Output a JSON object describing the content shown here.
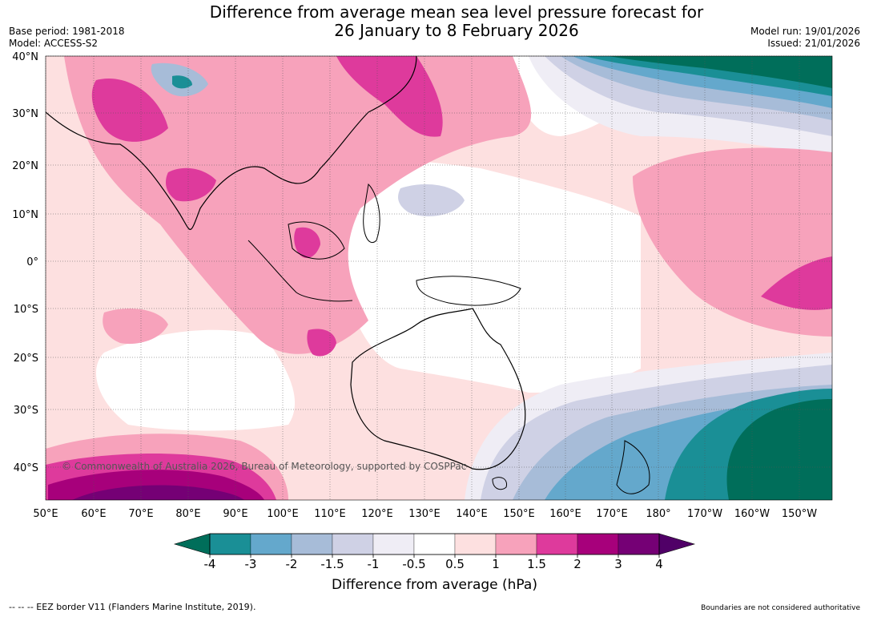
{
  "header": {
    "title_line1": "Difference from average mean sea level pressure forecast for",
    "title_line2": "26 January to 8 February 2026",
    "base_period": "Base period: 1981-2018",
    "model": "Model: ACCESS-S2",
    "model_run": "Model run: 19/01/2026",
    "issued": "Issued: 21/01/2026"
  },
  "map": {
    "lat_labels": [
      "40°N",
      "30°N",
      "20°N",
      "10°N",
      "0°",
      "10°S",
      "20°S",
      "30°S",
      "40°S"
    ],
    "lon_labels": [
      "50°E",
      "60°E",
      "70°E",
      "80°E",
      "90°E",
      "100°E",
      "110°E",
      "120°E",
      "130°E",
      "140°E",
      "150°E",
      "160°E",
      "170°E",
      "180°",
      "170°W",
      "160°W",
      "150°W"
    ],
    "copyright": "© Commonwealth of Australia 2026, Bureau of Meteorology, supported by COSPPac"
  },
  "colorbar": {
    "ticks": [
      "-4",
      "-3",
      "-2",
      "-1.5",
      "-1",
      "-0.5",
      "0.5",
      "1",
      "1.5",
      "2",
      "3",
      "4"
    ],
    "colors": [
      "#1a8f96",
      "#64a8cc",
      "#a7bcd8",
      "#cfd1e5",
      "#efedf5",
      "#ffffff",
      "#fde0e0",
      "#f7a2bb",
      "#de3a9c",
      "#a7007b",
      "#750075"
    ],
    "under_color": "#006e5a",
    "over_color": "#500067",
    "label": "Difference from average (hPa)"
  },
  "footer": {
    "eez": "--  --  -- EEZ border V11 (Flanders Marine Institute, 2019).",
    "boundaries": "Boundaries are not considered authoritative"
  }
}
